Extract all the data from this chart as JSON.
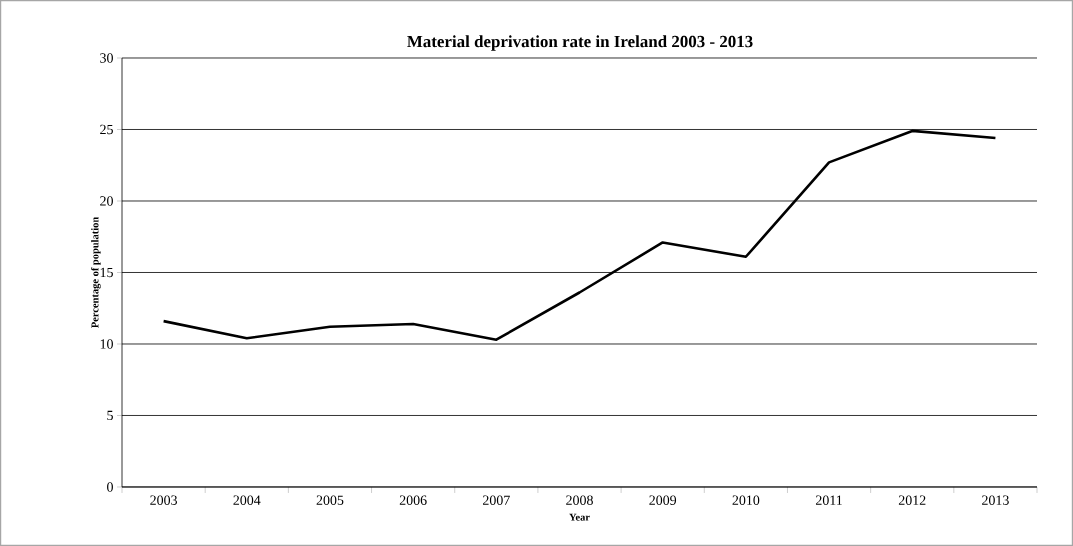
{
  "chart_data": {
    "type": "line",
    "title": "Material deprivation rate in Ireland 2003 - 2013",
    "xlabel": "Year",
    "ylabel": "Percentage of population",
    "categories": [
      "2003",
      "2004",
      "2005",
      "2006",
      "2007",
      "2008",
      "2009",
      "2010",
      "2011",
      "2012",
      "2013"
    ],
    "series": [
      {
        "color": "#000000",
        "values": [
          11.6,
          10.4,
          11.2,
          11.4,
          10.3,
          13.6,
          17.1,
          16.1,
          22.7,
          24.9,
          24.4
        ]
      }
    ],
    "ylim": [
      0,
      30
    ],
    "yticks": [
      0,
      5,
      10,
      15,
      20,
      25,
      30
    ],
    "grid": "y",
    "marker": "none",
    "line_style": "solid"
  }
}
